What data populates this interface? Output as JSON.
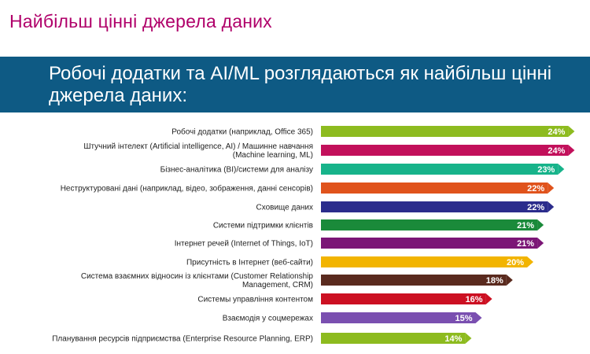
{
  "page": {
    "title": "Найбільш цінні джерела даних",
    "banner": "Робочі додатки та AI/ML розглядаються як найбільш цінні джерела даних:"
  },
  "chart_data": {
    "type": "bar",
    "orientation": "horizontal",
    "value_suffix": "%",
    "xlim": [
      0,
      24
    ],
    "grid": false,
    "categories": [
      [
        "Робочі додатки (наприклад, Office 365)"
      ],
      [
        "Штучний інтелект (Artificial intelligence, AI) / Машинне навчання",
        "(Machine learning, ML)"
      ],
      [
        "Бізнес-аналітика (BI)/системи для аналізу"
      ],
      [
        "Неструктуровані дані (наприклад, відео, зображення, данні сенсорів)"
      ],
      [
        "Сховище даних"
      ],
      [
        "Системи підтримки клієнтів"
      ],
      [
        "Інтернет речей (Internet of Things, IoT)"
      ],
      [
        "Присутність в Інтернет (веб-сайти)"
      ],
      [
        "Система взаємних відносин із клієнтами (Customer Relationship",
        "Management, CRM)"
      ],
      [
        "Системы управління контентом"
      ],
      [
        "Взаємодія у соцмережах"
      ],
      [
        "Планування ресурсів підприємства (Enterprise Resource Planning, ERP)"
      ]
    ],
    "values": [
      24,
      24,
      23,
      22,
      22,
      21,
      21,
      20,
      18,
      16,
      15,
      14
    ],
    "colors": [
      "#8dbb1f",
      "#c2105b",
      "#17b38a",
      "#e0531c",
      "#2b2c8c",
      "#1a8a3a",
      "#7b1676",
      "#f2b400",
      "#5a2a1e",
      "#cc1022",
      "#7a4fb0",
      "#8dbb1f"
    ]
  }
}
